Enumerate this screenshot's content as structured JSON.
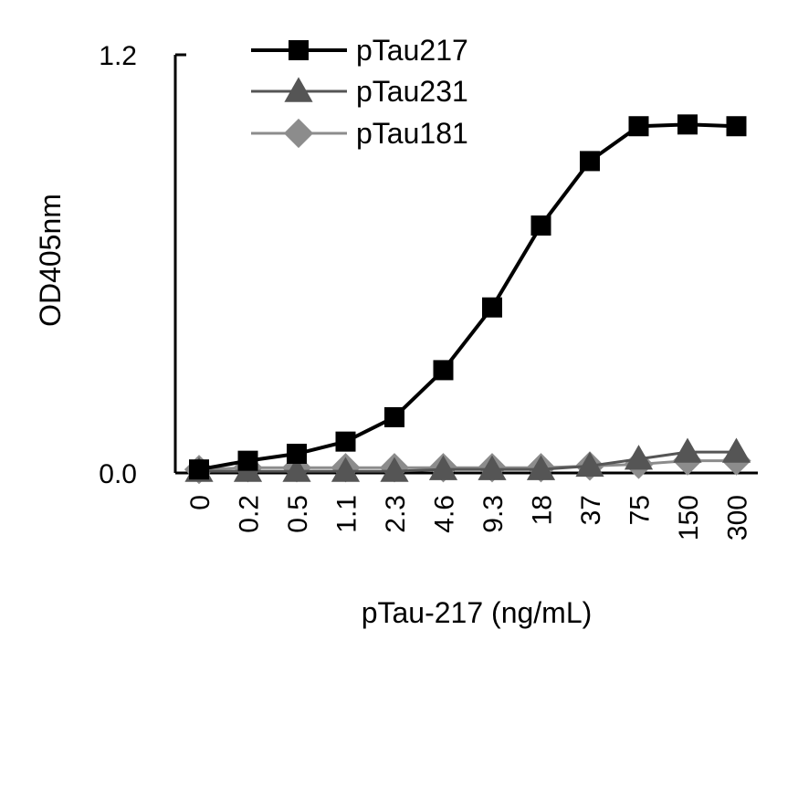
{
  "chart_data": {
    "type": "line",
    "categories": [
      "0",
      "0.2",
      "0.5",
      "1.1",
      "2.3",
      "4.6",
      "9.3",
      "18",
      "37",
      "75",
      "150",
      "300"
    ],
    "xlabel": "pTau-217 (ng/mL)",
    "ylabel": "OD405nm",
    "ylim": [
      0,
      1.2
    ],
    "yticks": [
      "0.0",
      "1.2"
    ],
    "grid": false,
    "legend_position": "top-left",
    "series": [
      {
        "name": "pTau217",
        "color": "#000000",
        "marker": "square",
        "values": [
          0.01,
          0.035,
          0.055,
          0.09,
          0.16,
          0.295,
          0.475,
          0.71,
          0.895,
          0.995,
          1.0,
          0.995
        ]
      },
      {
        "name": "pTau231",
        "color": "#555555",
        "marker": "triangle",
        "values": [
          0.005,
          0.005,
          0.005,
          0.005,
          0.005,
          0.01,
          0.01,
          0.01,
          0.02,
          0.04,
          0.06,
          0.06
        ]
      },
      {
        "name": "pTau181",
        "color": "#8c8c8c",
        "marker": "diamond",
        "values": [
          0.01,
          0.015,
          0.015,
          0.015,
          0.015,
          0.015,
          0.015,
          0.015,
          0.02,
          0.025,
          0.035,
          0.035
        ]
      }
    ]
  }
}
